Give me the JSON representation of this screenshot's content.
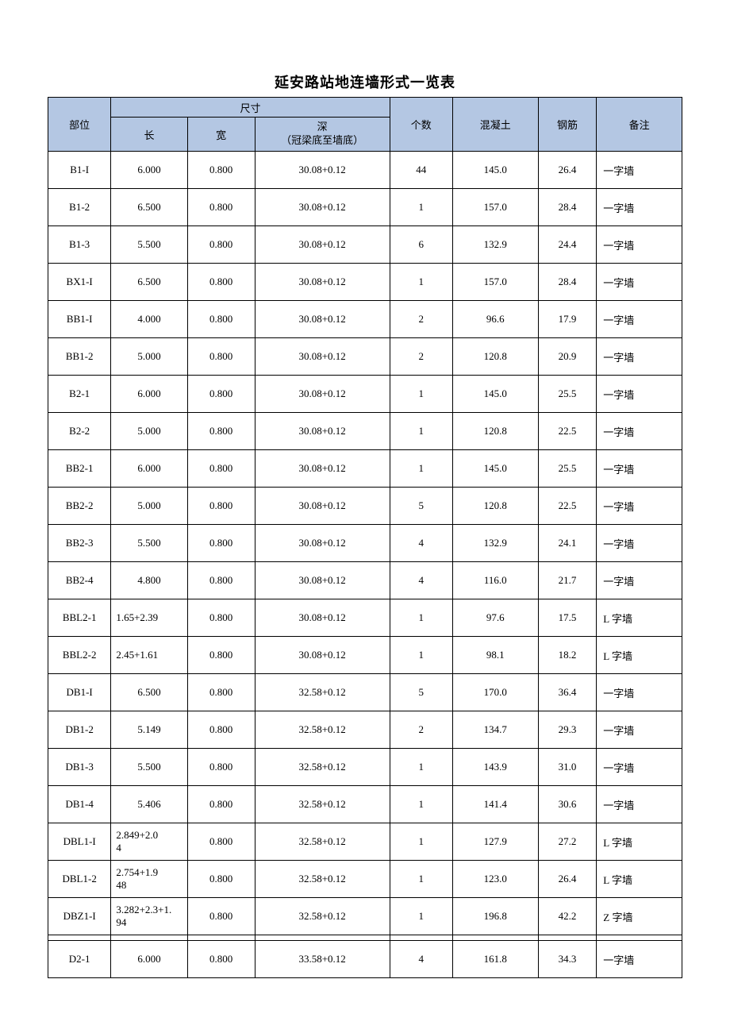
{
  "title": "延安路站地连墙形式一览表",
  "header": {
    "part": "部位",
    "size": "尺寸",
    "len": "长",
    "wid": "宽",
    "dep_line1": "深",
    "dep_line2": "（冠梁底至墙底）",
    "cnt": "个数",
    "conc": "混凝土",
    "steel": "钢筋",
    "note": "备注"
  },
  "colors": {
    "header_bg": "#b4c7e3",
    "border": "#000000",
    "page_bg": "#ffffff",
    "text": "#000000"
  },
  "columns": {
    "part_w": 70,
    "len_w": 85,
    "wid_w": 75,
    "dep_w": 150,
    "cnt_w": 70,
    "conc_w": 95,
    "steel_w": 65,
    "note_w": 95
  },
  "typography": {
    "title_fontsize": 18,
    "cell_fontsize": 13,
    "font_family": "SimSun"
  },
  "rows": [
    {
      "part": "B1-I",
      "len": "6.000",
      "wid": "0.800",
      "dep": "30.08+0.12",
      "cnt": "44",
      "conc": "145.0",
      "steel": "26.4",
      "note": "一字墙"
    },
    {
      "part": "B1-2",
      "len": "6.500",
      "wid": "0.800",
      "dep": "30.08+0.12",
      "cnt": "1",
      "conc": "157.0",
      "steel": "28.4",
      "note": "一字墙"
    },
    {
      "part": "B1-3",
      "len": "5.500",
      "wid": "0.800",
      "dep": "30.08+0.12",
      "cnt": "6",
      "conc": "132.9",
      "steel": "24.4",
      "note": "一字墙"
    },
    {
      "part": "BX1-I",
      "len": "6.500",
      "wid": "0.800",
      "dep": "30.08+0.12",
      "cnt": "1",
      "conc": "157.0",
      "steel": "28.4",
      "note": "一字墙"
    },
    {
      "part": "BB1-I",
      "len": "4.000",
      "wid": "0.800",
      "dep": "30.08+0.12",
      "cnt": "2",
      "conc": "96.6",
      "steel": "17.9",
      "note": "一字墙"
    },
    {
      "part": "BB1-2",
      "len": "5.000",
      "wid": "0.800",
      "dep": "30.08+0.12",
      "cnt": "2",
      "conc": "120.8",
      "steel": "20.9",
      "note": "一字墙"
    },
    {
      "part": "B2-1",
      "len": "6.000",
      "wid": "0.800",
      "dep": "30.08+0.12",
      "cnt": "1",
      "conc": "145.0",
      "steel": "25.5",
      "note": "一字墙"
    },
    {
      "part": "B2-2",
      "len": "5.000",
      "wid": "0.800",
      "dep": "30.08+0.12",
      "cnt": "1",
      "conc": "120.8",
      "steel": "22.5",
      "note": "一字墙"
    },
    {
      "part": "BB2-1",
      "len": "6.000",
      "wid": "0.800",
      "dep": "30.08+0.12",
      "cnt": "1",
      "conc": "145.0",
      "steel": "25.5",
      "note": "一字墙"
    },
    {
      "part": "BB2-2",
      "len": "5.000",
      "wid": "0.800",
      "dep": "30.08+0.12",
      "cnt": "5",
      "conc": "120.8",
      "steel": "22.5",
      "note": "一字墙"
    },
    {
      "part": "BB2-3",
      "len": "5.500",
      "wid": "0.800",
      "dep": "30.08+0.12",
      "cnt": "4",
      "conc": "132.9",
      "steel": "24.1",
      "note": "一字墙"
    },
    {
      "part": "BB2-4",
      "len": "4.800",
      "wid": "0.800",
      "dep": "30.08+0.12",
      "cnt": "4",
      "conc": "116.0",
      "steel": "21.7",
      "note": "一字墙"
    },
    {
      "part": "BBL2-1",
      "len": "1.65+2.39",
      "wid": "0.800",
      "dep": "30.08+0.12",
      "cnt": "1",
      "conc": "97.6",
      "steel": "17.5",
      "note": "L 字墙",
      "len_left": true
    },
    {
      "part": "BBL2-2",
      "len": "2.45+1.61",
      "wid": "0.800",
      "dep": "30.08+0.12",
      "cnt": "1",
      "conc": "98.1",
      "steel": "18.2",
      "note": "L 字墙",
      "len_left": true
    },
    {
      "part": "DB1-I",
      "len": "6.500",
      "wid": "0.800",
      "dep": "32.58+0.12",
      "cnt": "5",
      "conc": "170.0",
      "steel": "36.4",
      "note": "一字墙"
    },
    {
      "part": "DB1-2",
      "len": "5.149",
      "wid": "0.800",
      "dep": "32.58+0.12",
      "cnt": "2",
      "conc": "134.7",
      "steel": "29.3",
      "note": "一字墙"
    },
    {
      "part": "DB1-3",
      "len": "5.500",
      "wid": "0.800",
      "dep": "32.58+0.12",
      "cnt": "1",
      "conc": "143.9",
      "steel": "31.0",
      "note": "一字墙"
    },
    {
      "part": "DB1-4",
      "len": "5.406",
      "wid": "0.800",
      "dep": "32.58+0.12",
      "cnt": "1",
      "conc": "141.4",
      "steel": "30.6",
      "note": "一字墙"
    },
    {
      "part": "DBL1-I",
      "len": "2.849+2.0\n4",
      "wid": "0.800",
      "dep": "32.58+0.12",
      "cnt": "1",
      "conc": "127.9",
      "steel": "27.2",
      "note": "L 字墙",
      "len_left": true,
      "multi": true
    },
    {
      "part": "DBL1-2",
      "len": "2.754+1.9\n48",
      "wid": "0.800",
      "dep": "32.58+0.12",
      "cnt": "1",
      "conc": "123.0",
      "steel": "26.4",
      "note": "L 字墙",
      "len_left": true,
      "multi": true
    },
    {
      "part": "DBZ1-I",
      "len": "3.282+2.3+1.\n94",
      "wid": "0.800",
      "dep": "32.58+0.12",
      "cnt": "1",
      "conc": "196.8",
      "steel": "42.2",
      "note": "Z 字墙",
      "len_left": true,
      "multi": true
    },
    {
      "spacer": true
    },
    {
      "part": "D2-1",
      "len": "6.000",
      "wid": "0.800",
      "dep": "33.58+0.12",
      "cnt": "4",
      "conc": "161.8",
      "steel": "34.3",
      "note": "一字墙"
    }
  ]
}
